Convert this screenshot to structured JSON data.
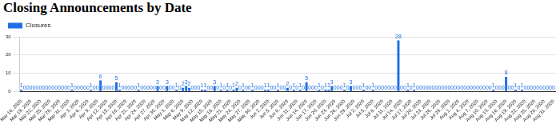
{
  "chart_data": {
    "type": "bar",
    "title": "Closing Announcements by Date",
    "categories": [
      "Mar 16, 2020",
      null,
      null,
      "Mar 19, 2020",
      null,
      null,
      "Mar 22, 2020",
      null,
      null,
      "Mar 25, 2020",
      null,
      null,
      "Mar 28, 2020",
      null,
      null,
      "Mar 31, 2020",
      null,
      null,
      "Apr 3, 2020",
      null,
      null,
      "Apr 6, 2020",
      null,
      null,
      "Apr 9, 2020",
      null,
      null,
      "Apr 12, 2020",
      null,
      null,
      "Apr 15, 2020",
      null,
      null,
      "Apr 18, 2020",
      null,
      null,
      "Apr 21, 2020",
      null,
      null,
      "Apr 24, 2020",
      null,
      null,
      "Apr 27, 2020",
      null,
      null,
      "Apr 30, 2020",
      null,
      null,
      "May 3, 2020",
      null,
      null,
      "May 6, 2020",
      null,
      null,
      "May 9, 2020",
      null,
      null,
      "May 12, 2020",
      null,
      null,
      "May 15, 2020",
      null,
      null,
      "May 18, 2020",
      null,
      null,
      "May 21, 2020",
      null,
      null,
      "May 24, 2020",
      null,
      null,
      "May 27, 2020",
      null,
      null,
      "May 30, 2020",
      null,
      null,
      "Jun 2, 2020",
      null,
      null,
      "Jun 5, 2020",
      null,
      null,
      "Jun 8, 2020",
      null,
      null,
      "Jun 11, 2020",
      null,
      null,
      "Jun 14, 2020",
      null,
      null,
      "Jun 17, 2020",
      null,
      null,
      "Jun 20, 2020",
      null,
      null,
      "Jun 23, 2020",
      null,
      null,
      "Jun 26, 2020",
      null,
      null,
      "Jun 29, 2020",
      null,
      null,
      "Jul 2, 2020",
      null,
      null,
      "Jul 5, 2020",
      null,
      null,
      "Jul 8, 2020",
      null,
      null,
      "Jul 11, 2020",
      null,
      null,
      "Jul 14, 2020",
      null,
      null,
      "Jul 17, 2020",
      null,
      null,
      "Jul 20, 2020",
      null,
      null,
      "Jul 23, 2020",
      null,
      null,
      "Jul 26, 2020",
      null,
      null,
      "Jul 29, 2020",
      null,
      null,
      "Aug 1, 2020",
      null,
      null,
      "Aug 4, 2020",
      null,
      null,
      "Aug 7, 2020",
      null,
      null,
      "Aug 10, 2020",
      null,
      null,
      "Aug 13, 2020",
      null,
      null,
      "Aug 16, 2020",
      null,
      null,
      "Aug 19, 2020",
      null,
      null,
      "Aug 22, 2020",
      null,
      null,
      "Aug 25, 2020",
      null,
      null,
      "Aug 28, 2020",
      null,
      null,
      "Aug 31, 2020"
    ],
    "series": [
      {
        "name": "Closures",
        "color": "#1f6fe5",
        "values": [
          1,
          0,
          0,
          0,
          0,
          0,
          0,
          0,
          0,
          0,
          0,
          0,
          0,
          0,
          0,
          0,
          1,
          0,
          0,
          0,
          0,
          0,
          1,
          0,
          0,
          6,
          0,
          0,
          0,
          0,
          5,
          1,
          0,
          0,
          0,
          0,
          0,
          1,
          0,
          0,
          0,
          0,
          0,
          3,
          0,
          0,
          3,
          0,
          0,
          1,
          0,
          2,
          3,
          2,
          0,
          0,
          0,
          1,
          1,
          0,
          0,
          3,
          0,
          1,
          0,
          1,
          0,
          1,
          2,
          0,
          1,
          0,
          0,
          1,
          0,
          0,
          0,
          1,
          1,
          0,
          0,
          1,
          0,
          0,
          2,
          0,
          1,
          0,
          1,
          0,
          5,
          0,
          0,
          0,
          1,
          0,
          1,
          1,
          3,
          0,
          0,
          0,
          1,
          0,
          3,
          0,
          0,
          0,
          1,
          0,
          0,
          1,
          0,
          0,
          0,
          0,
          0,
          0,
          0,
          28,
          0,
          0,
          1,
          0,
          1,
          0,
          0,
          0,
          0,
          0,
          0,
          0,
          0,
          0,
          0,
          0,
          0,
          0,
          0,
          0,
          0,
          0,
          0,
          0,
          0,
          0,
          0,
          0,
          0,
          1,
          0,
          0,
          0,
          8,
          0,
          0,
          1,
          0,
          1,
          0,
          0,
          0,
          0,
          0,
          0,
          0,
          0,
          0,
          0
        ]
      }
    ],
    "ylim": [
      0,
      30
    ],
    "yticks": [
      0,
      10,
      20,
      30
    ],
    "grid": true,
    "legend": "top-left",
    "data_labels": true
  }
}
